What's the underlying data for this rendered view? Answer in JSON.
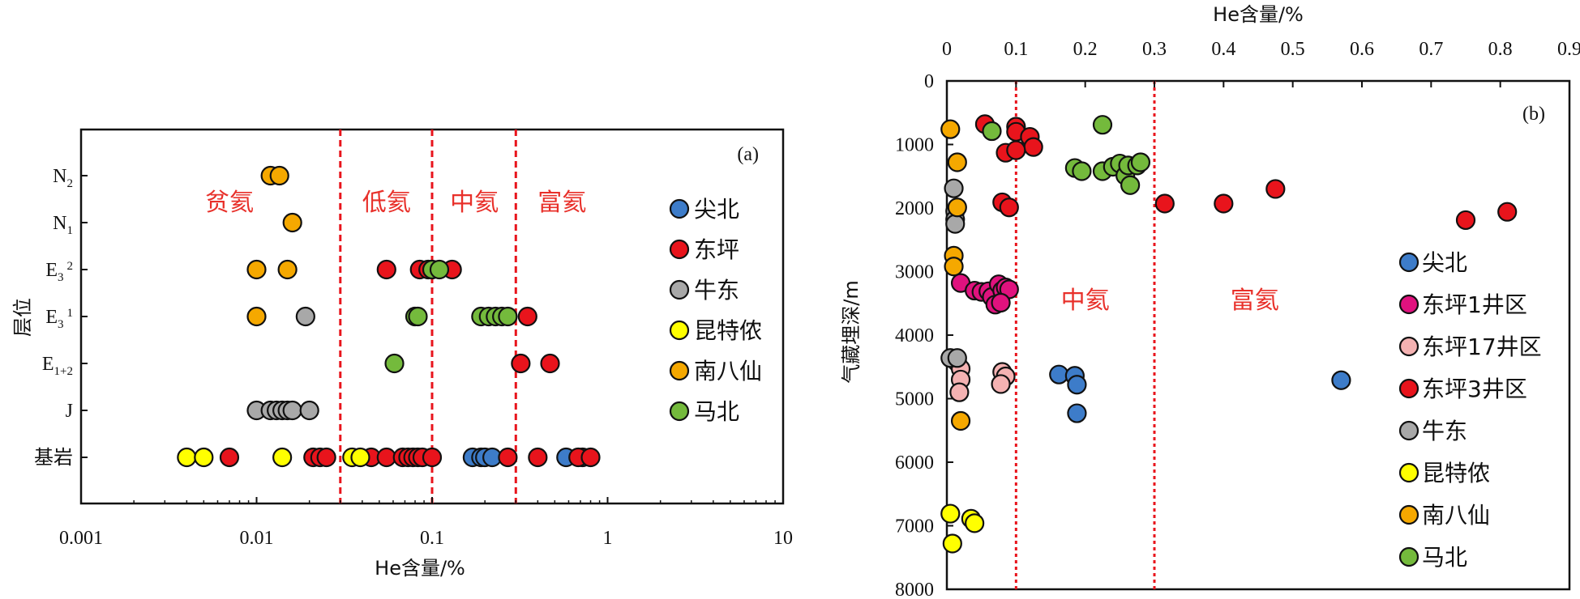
{
  "chart_data": [
    {
      "panel_label": "(a)",
      "type": "scatter",
      "xscale": "log",
      "xlim": [
        0.001,
        10
      ],
      "xticks": [
        "0.001",
        "0.01",
        "0.1",
        "1",
        "10"
      ],
      "xlabel": "He含量/%",
      "ylabel": "层位",
      "categories": [
        {
          "main": "N",
          "sub": "2",
          "sup": ""
        },
        {
          "main": "N",
          "sub": "1",
          "sup": ""
        },
        {
          "main": "E",
          "sub": "3",
          "sup": "2"
        },
        {
          "main": "E",
          "sub": "3",
          "sup": "1"
        },
        {
          "main": "E",
          "sub": "1+2",
          "sup": ""
        },
        {
          "main": "J",
          "sub": "",
          "sup": ""
        },
        {
          "main": "基岩",
          "sub": "",
          "sup": ""
        }
      ],
      "thresholds": [
        0.03,
        0.1,
        0.3
      ],
      "zones": [
        {
          "label": "贫氦",
          "x": 0.007
        },
        {
          "label": "低氦",
          "x": 0.055
        },
        {
          "label": "中氦",
          "x": 0.174
        },
        {
          "label": "富氦",
          "x": 0.55
        }
      ],
      "legend": [
        "尖北",
        "东坪",
        "牛东",
        "昆特侬",
        "南八仙",
        "马北"
      ],
      "series": [
        {
          "name": "尖北",
          "color": "#3d7cc9",
          "points": [
            {
              "x": 0.17,
              "y": "基岩"
            },
            {
              "x": 0.19,
              "y": "基岩"
            },
            {
              "x": 0.2,
              "y": "基岩"
            },
            {
              "x": 0.22,
              "y": "基岩"
            },
            {
              "x": 0.58,
              "y": "基岩"
            },
            {
              "x": 0.72,
              "y": "基岩"
            }
          ]
        },
        {
          "name": "东坪",
          "color": "#e8141c",
          "points": [
            {
              "x": 0.055,
              "y": "E3²"
            },
            {
              "x": 0.085,
              "y": "E3²"
            },
            {
              "x": 0.095,
              "y": "E3²"
            },
            {
              "x": 0.13,
              "y": "E3²"
            },
            {
              "x": 0.35,
              "y": "E3¹"
            },
            {
              "x": 0.32,
              "y": "E1+2"
            },
            {
              "x": 0.47,
              "y": "E1+2"
            },
            {
              "x": 0.007,
              "y": "基岩"
            },
            {
              "x": 0.021,
              "y": "基岩"
            },
            {
              "x": 0.023,
              "y": "基岩"
            },
            {
              "x": 0.025,
              "y": "基岩"
            },
            {
              "x": 0.045,
              "y": "基岩"
            },
            {
              "x": 0.055,
              "y": "基岩"
            },
            {
              "x": 0.068,
              "y": "基岩"
            },
            {
              "x": 0.073,
              "y": "基岩"
            },
            {
              "x": 0.078,
              "y": "基岩"
            },
            {
              "x": 0.083,
              "y": "基岩"
            },
            {
              "x": 0.088,
              "y": "基岩"
            },
            {
              "x": 0.1,
              "y": "基岩"
            },
            {
              "x": 0.27,
              "y": "基岩"
            },
            {
              "x": 0.4,
              "y": "基岩"
            },
            {
              "x": 0.68,
              "y": "基岩"
            },
            {
              "x": 0.8,
              "y": "基岩"
            }
          ]
        },
        {
          "name": "牛东",
          "color": "#a8a8a8",
          "points": [
            {
              "x": 0.019,
              "y": "E3¹"
            },
            {
              "x": 0.01,
              "y": "J"
            },
            {
              "x": 0.012,
              "y": "J"
            },
            {
              "x": 0.013,
              "y": "J"
            },
            {
              "x": 0.014,
              "y": "J"
            },
            {
              "x": 0.015,
              "y": "J"
            },
            {
              "x": 0.016,
              "y": "J"
            },
            {
              "x": 0.02,
              "y": "J"
            }
          ]
        },
        {
          "name": "昆特侬",
          "color": "#ffff00",
          "points": [
            {
              "x": 0.004,
              "y": "基岩"
            },
            {
              "x": 0.005,
              "y": "基岩"
            },
            {
              "x": 0.014,
              "y": "基岩"
            },
            {
              "x": 0.035,
              "y": "基岩"
            },
            {
              "x": 0.039,
              "y": "基岩"
            }
          ]
        },
        {
          "name": "南八仙",
          "color": "#f5a800",
          "points": [
            {
              "x": 0.012,
              "y": "N2"
            },
            {
              "x": 0.0135,
              "y": "N2"
            },
            {
              "x": 0.016,
              "y": "N1"
            },
            {
              "x": 0.01,
              "y": "E3²"
            },
            {
              "x": 0.015,
              "y": "E3²"
            },
            {
              "x": 0.01,
              "y": "E3¹"
            }
          ]
        },
        {
          "name": "马北",
          "color": "#74ba3c",
          "points": [
            {
              "x": 0.1,
              "y": "E3²"
            },
            {
              "x": 0.11,
              "y": "E3²"
            },
            {
              "x": 0.08,
              "y": "E3¹"
            },
            {
              "x": 0.083,
              "y": "E3¹"
            },
            {
              "x": 0.19,
              "y": "E3¹"
            },
            {
              "x": 0.21,
              "y": "E3¹"
            },
            {
              "x": 0.23,
              "y": "E3¹"
            },
            {
              "x": 0.25,
              "y": "E3¹"
            },
            {
              "x": 0.27,
              "y": "E3¹"
            },
            {
              "x": 0.061,
              "y": "E1+2"
            }
          ]
        }
      ]
    },
    {
      "panel_label": "(b)",
      "type": "scatter",
      "xlim": [
        0,
        0.9
      ],
      "xticks": [
        "0",
        "0.1",
        "0.2",
        "0.3",
        "0.4",
        "0.5",
        "0.6",
        "0.7",
        "0.8",
        "0.9"
      ],
      "ylim": [
        0,
        8000
      ],
      "yticks": [
        "0",
        "1000",
        "2000",
        "3000",
        "4000",
        "5000",
        "6000",
        "7000",
        "8000"
      ],
      "y_inverted": true,
      "xlabel": "He含量/%",
      "ylabel": "气藏埋深/m",
      "thresholds": [
        0.1,
        0.3
      ],
      "zones": [
        {
          "label": "中氦",
          "x": 0.2,
          "y": 3450
        },
        {
          "label": "富氦",
          "x": 0.445,
          "y": 3450
        }
      ],
      "legend": [
        "尖北",
        "东坪1井区",
        "东坪17井区",
        "东坪3井区",
        "牛东",
        "昆特侬",
        "南八仙",
        "马北"
      ],
      "series": [
        {
          "name": "尖北",
          "color": "#3d7cc9",
          "points": [
            {
              "x": 0.162,
              "y": 4620
            },
            {
              "x": 0.185,
              "y": 4640
            },
            {
              "x": 0.188,
              "y": 4780
            },
            {
              "x": 0.188,
              "y": 5230
            },
            {
              "x": 0.57,
              "y": 4710
            }
          ]
        },
        {
          "name": "东坪1井区",
          "color": "#e0127e",
          "points": [
            {
              "x": 0.02,
              "y": 3180
            },
            {
              "x": 0.04,
              "y": 3300
            },
            {
              "x": 0.05,
              "y": 3320
            },
            {
              "x": 0.06,
              "y": 3310
            },
            {
              "x": 0.065,
              "y": 3400
            },
            {
              "x": 0.07,
              "y": 3520
            },
            {
              "x": 0.075,
              "y": 3200
            },
            {
              "x": 0.08,
              "y": 3300
            },
            {
              "x": 0.085,
              "y": 3250
            },
            {
              "x": 0.09,
              "y": 3280
            },
            {
              "x": 0.078,
              "y": 3490
            }
          ]
        },
        {
          "name": "东坪17井区",
          "color": "#f4b2b2",
          "points": [
            {
              "x": 0.015,
              "y": 4430
            },
            {
              "x": 0.02,
              "y": 4530
            },
            {
              "x": 0.02,
              "y": 4700
            },
            {
              "x": 0.018,
              "y": 4900
            },
            {
              "x": 0.08,
              "y": 4580
            },
            {
              "x": 0.085,
              "y": 4650
            },
            {
              "x": 0.078,
              "y": 4770
            }
          ]
        },
        {
          "name": "东坪3井区",
          "color": "#e8141c",
          "points": [
            {
              "x": 0.055,
              "y": 680
            },
            {
              "x": 0.1,
              "y": 720
            },
            {
              "x": 0.1,
              "y": 800
            },
            {
              "x": 0.12,
              "y": 880
            },
            {
              "x": 0.125,
              "y": 1040
            },
            {
              "x": 0.085,
              "y": 1130
            },
            {
              "x": 0.1,
              "y": 1090
            },
            {
              "x": 0.08,
              "y": 1910
            },
            {
              "x": 0.09,
              "y": 1990
            },
            {
              "x": 0.315,
              "y": 1930
            },
            {
              "x": 0.4,
              "y": 1930
            },
            {
              "x": 0.475,
              "y": 1700
            },
            {
              "x": 0.75,
              "y": 2190
            },
            {
              "x": 0.81,
              "y": 2060
            }
          ]
        },
        {
          "name": "牛东",
          "color": "#a8a8a8",
          "points": [
            {
              "x": 0.01,
              "y": 1690
            },
            {
              "x": 0.012,
              "y": 2050
            },
            {
              "x": 0.012,
              "y": 2180
            },
            {
              "x": 0.012,
              "y": 2250
            },
            {
              "x": 0.005,
              "y": 4360
            },
            {
              "x": 0.015,
              "y": 4360
            }
          ]
        },
        {
          "name": "昆特侬",
          "color": "#ffff00",
          "points": [
            {
              "x": 0.005,
              "y": 6810
            },
            {
              "x": 0.035,
              "y": 6890
            },
            {
              "x": 0.04,
              "y": 6960
            },
            {
              "x": 0.008,
              "y": 7280
            }
          ]
        },
        {
          "name": "南八仙",
          "color": "#f5a800",
          "points": [
            {
              "x": 0.005,
              "y": 760
            },
            {
              "x": 0.015,
              "y": 1280
            },
            {
              "x": 0.015,
              "y": 1990
            },
            {
              "x": 0.01,
              "y": 2750
            },
            {
              "x": 0.01,
              "y": 2920
            },
            {
              "x": 0.02,
              "y": 5350
            }
          ]
        },
        {
          "name": "马北",
          "color": "#74ba3c",
          "points": [
            {
              "x": 0.065,
              "y": 790
            },
            {
              "x": 0.225,
              "y": 690
            },
            {
              "x": 0.185,
              "y": 1370
            },
            {
              "x": 0.195,
              "y": 1420
            },
            {
              "x": 0.225,
              "y": 1420
            },
            {
              "x": 0.24,
              "y": 1350
            },
            {
              "x": 0.25,
              "y": 1300
            },
            {
              "x": 0.258,
              "y": 1490
            },
            {
              "x": 0.262,
              "y": 1330
            },
            {
              "x": 0.265,
              "y": 1640
            },
            {
              "x": 0.275,
              "y": 1330
            },
            {
              "x": 0.28,
              "y": 1280
            }
          ]
        }
      ]
    }
  ]
}
